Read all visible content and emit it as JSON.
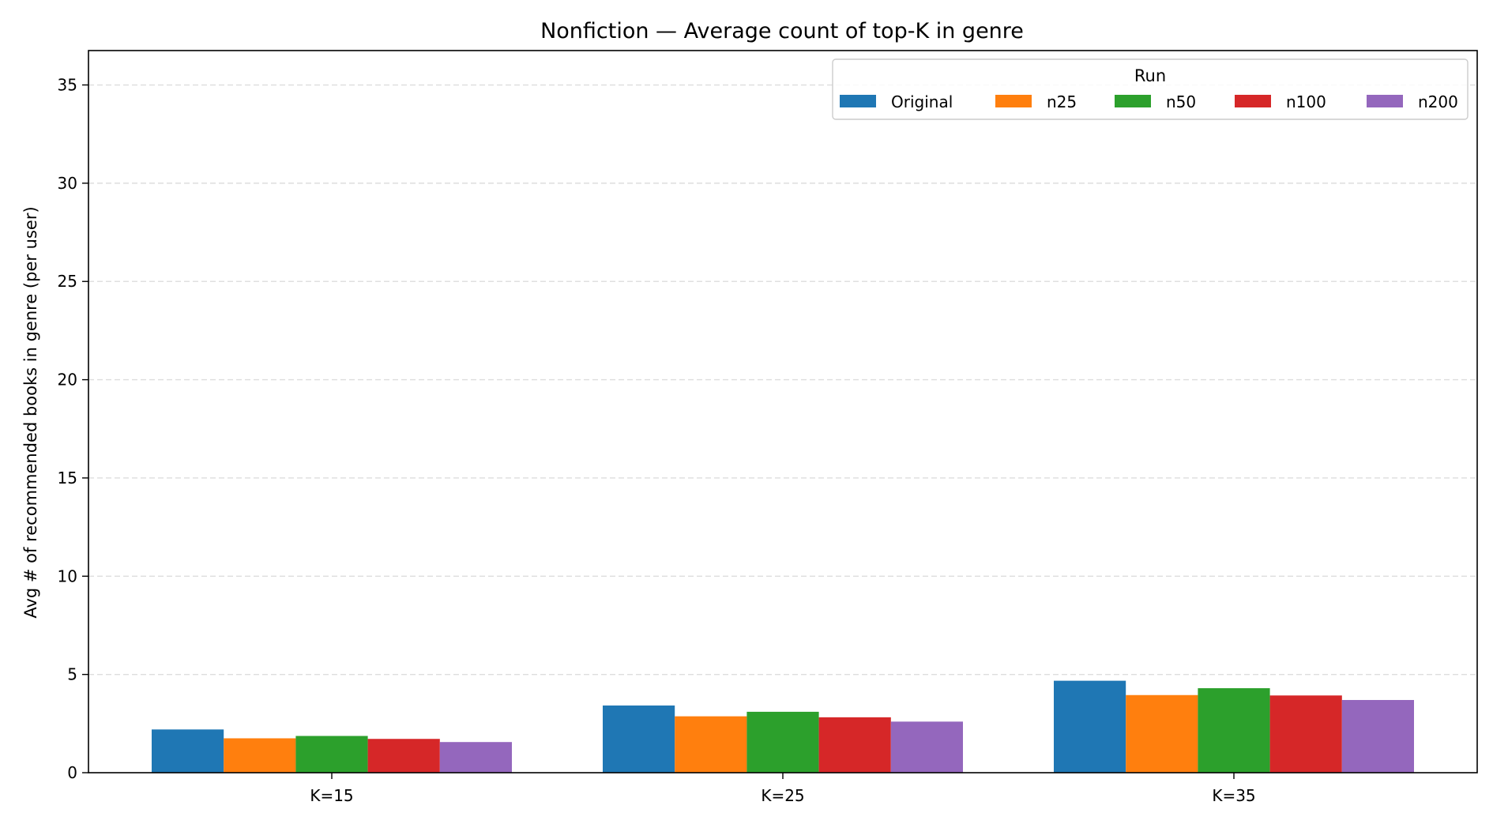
{
  "chart_data": {
    "type": "bar",
    "title": "Nonfiction — Average count of top-K in genre",
    "xlabel": "",
    "ylabel": "Avg # of recommended books in genre (per user)",
    "categories": [
      "K=15",
      "K=25",
      "K=35"
    ],
    "ylim": [
      0,
      36.75
    ],
    "yticks": [
      0,
      5,
      10,
      15,
      20,
      25,
      30,
      35
    ],
    "grid": "horizontal-dashed",
    "legend": {
      "title": "Run",
      "position": "top-right",
      "columns": 5
    },
    "series": [
      {
        "name": "Original",
        "color": "#1f77b4",
        "values": [
          2.2,
          3.42,
          4.68
        ]
      },
      {
        "name": "n25",
        "color": "#ff7f0e",
        "values": [
          1.75,
          2.87,
          3.95
        ]
      },
      {
        "name": "n50",
        "color": "#2ca02c",
        "values": [
          1.87,
          3.1,
          4.3
        ]
      },
      {
        "name": "n100",
        "color": "#d62728",
        "values": [
          1.72,
          2.82,
          3.93
        ]
      },
      {
        "name": "n200",
        "color": "#9467bd",
        "values": [
          1.56,
          2.6,
          3.7
        ]
      }
    ]
  }
}
